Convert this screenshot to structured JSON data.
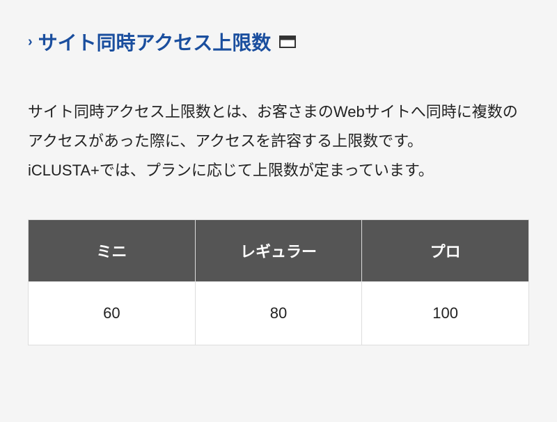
{
  "heading": {
    "text": "サイト同時アクセス上限数",
    "chevron": "›",
    "heading_color": "#1a4e9e"
  },
  "description": {
    "line1": "サイト同時アクセス上限数とは、お客さまのWebサイトへ同時に複数のアクセスがあった際に、アクセスを許容する上限数です。",
    "line2": "iCLUSTA+では、プランに応じて上限数が定まっています。"
  },
  "table": {
    "type": "table",
    "header_bg_color": "#555555",
    "header_text_color": "#ffffff",
    "cell_bg_color": "#ffffff",
    "cell_text_color": "#222222",
    "border_color": "#dddddd",
    "columns": [
      "ミニ",
      "レギュラー",
      "プロ"
    ],
    "rows": [
      [
        "60",
        "80",
        "100"
      ]
    ],
    "header_fontsize": 22,
    "cell_fontsize": 22
  },
  "page": {
    "background_color": "#f5f5f5"
  }
}
